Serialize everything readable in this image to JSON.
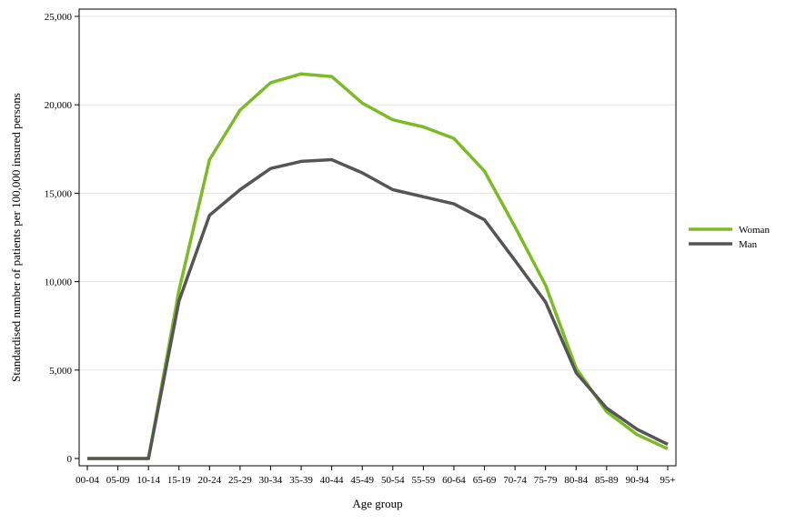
{
  "chart_data": {
    "type": "line",
    "title": "",
    "xlabel": "Age group",
    "ylabel": "Standardised number of patients per 100,000 insured persons",
    "categories": [
      "00-04",
      "05-09",
      "10-14",
      "15-19",
      "20-24",
      "25-29",
      "30-34",
      "35-39",
      "40-44",
      "45-49",
      "50-54",
      "55-59",
      "60-64",
      "65-69",
      "70-74",
      "75-79",
      "80-84",
      "85-89",
      "90-94",
      "95+"
    ],
    "ylim": [
      0,
      25000
    ],
    "yticks": [
      0,
      5000,
      10000,
      15000,
      20000,
      25000
    ],
    "ytick_labels": [
      "0",
      "5,000",
      "10,000",
      "15,000",
      "20,000",
      "25,000"
    ],
    "grid": true,
    "legend_position": "right",
    "series": [
      {
        "name": "Woman",
        "color": "#7cbb26",
        "values": [
          0,
          0,
          0,
          9500,
          16900,
          19700,
          21250,
          21750,
          21600,
          20100,
          19150,
          18750,
          18100,
          16250,
          13100,
          9800,
          5100,
          2650,
          1350,
          550
        ]
      },
      {
        "name": "Man",
        "color": "#555555",
        "values": [
          0,
          0,
          0,
          8900,
          13750,
          15200,
          16400,
          16800,
          16900,
          16150,
          15200,
          14800,
          14400,
          13500,
          11200,
          8850,
          4850,
          2850,
          1650,
          800
        ]
      }
    ]
  }
}
